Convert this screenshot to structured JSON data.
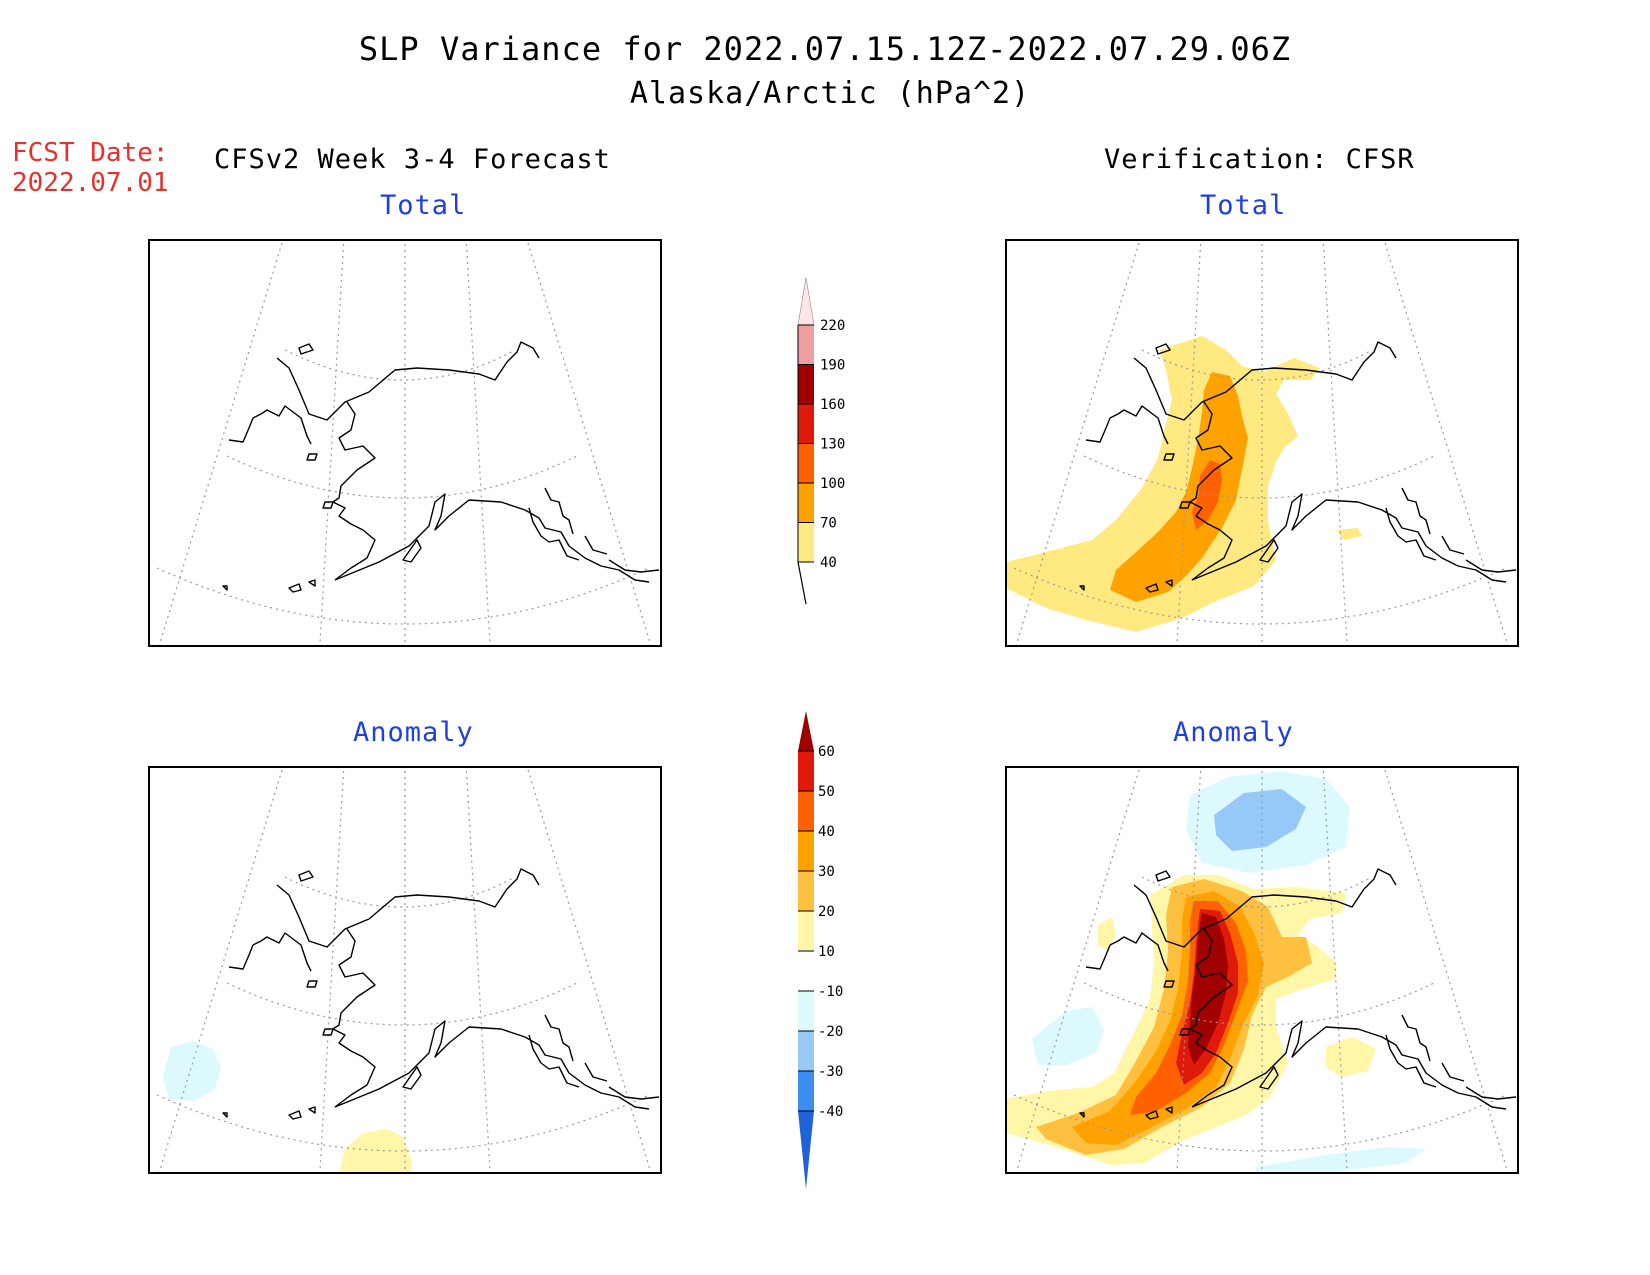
{
  "title": "SLP Variance for 2022.07.15.12Z-2022.07.29.06Z",
  "subtitle": "Alaska/Arctic (hPa^2)",
  "forecast_date": {
    "label": "FCST Date:",
    "value": "2022.07.01"
  },
  "columns": {
    "left": "CFSv2 Week 3-4 Forecast",
    "right": "Verification: CFSR"
  },
  "panels": {
    "forecast_total": {
      "title": "Total"
    },
    "verification_total": {
      "title": "Total"
    },
    "forecast_anomaly": {
      "title": "Anomaly"
    },
    "verification_anomaly": {
      "title": "Anomaly"
    }
  },
  "total_colorbar": {
    "ticks": [
      "40",
      "70",
      "100",
      "130",
      "160",
      "190",
      "220"
    ],
    "colors": [
      "#ffe980",
      "#ffa200",
      "#ff6100",
      "#e01a0a",
      "#a00000",
      "#f0a0a0",
      "#ffe5e5"
    ]
  },
  "anomaly_colorbar": {
    "ticks": [
      "-40",
      "-30",
      "-20",
      "-10",
      "10",
      "20",
      "30",
      "40",
      "50",
      "60"
    ],
    "colors": [
      "#1e64d8",
      "#3a8ff0",
      "#96c8f8",
      "#dcfafd",
      "#ffffff",
      "#fff6a8",
      "#ffc040",
      "#ffa200",
      "#ff6100",
      "#e01a0a",
      "#a00000"
    ]
  }
}
